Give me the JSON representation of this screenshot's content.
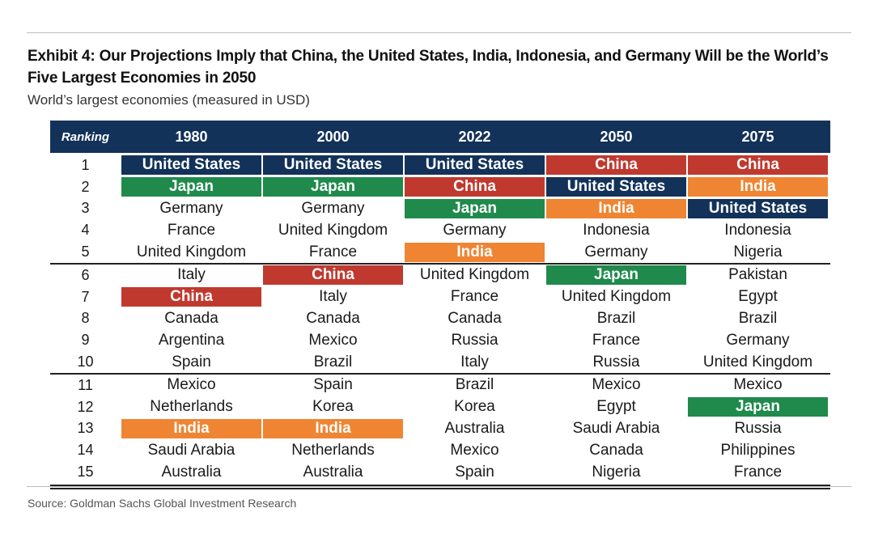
{
  "header": {
    "title": "Exhibit 4: Our Projections Imply that China, the United States, India, Indonesia, and Germany Will be the World’s Five Largest Economies in 2050",
    "subtitle": "World’s largest economies (measured in USD)"
  },
  "footer": {
    "source": "Source: Goldman Sachs Global Investment Research"
  },
  "colors": {
    "header_bg": "#13325a",
    "United States": "#13325a",
    "China": "#c0392f",
    "Japan": "#1f8a4c",
    "India": "#ef8533"
  },
  "chart_data": {
    "type": "table",
    "rank_header": "Ranking",
    "columns": [
      "1980",
      "2000",
      "2022",
      "2050",
      "2075"
    ],
    "highlighted": [
      "United States",
      "China",
      "Japan",
      "India"
    ],
    "rows": [
      {
        "rank": "1",
        "values": [
          "United States",
          "United States",
          "United States",
          "China",
          "China"
        ]
      },
      {
        "rank": "2",
        "values": [
          "Japan",
          "Japan",
          "China",
          "United States",
          "India"
        ]
      },
      {
        "rank": "3",
        "values": [
          "Germany",
          "Germany",
          "Japan",
          "India",
          "United States"
        ]
      },
      {
        "rank": "4",
        "values": [
          "France",
          "United Kingdom",
          "Germany",
          "Indonesia",
          "Indonesia"
        ]
      },
      {
        "rank": "5",
        "values": [
          "United Kingdom",
          "France",
          "India",
          "Germany",
          "Nigeria"
        ]
      },
      {
        "rank": "6",
        "values": [
          "Italy",
          "China",
          "United Kingdom",
          "Japan",
          "Pakistan"
        ]
      },
      {
        "rank": "7",
        "values": [
          "China",
          "Italy",
          "France",
          "United Kingdom",
          "Egypt"
        ]
      },
      {
        "rank": "8",
        "values": [
          "Canada",
          "Canada",
          "Canada",
          "Brazil",
          "Brazil"
        ]
      },
      {
        "rank": "9",
        "values": [
          "Argentina",
          "Mexico",
          "Russia",
          "France",
          "Germany"
        ]
      },
      {
        "rank": "10",
        "values": [
          "Spain",
          "Brazil",
          "Italy",
          "Russia",
          "United Kingdom"
        ]
      },
      {
        "rank": "11",
        "values": [
          "Mexico",
          "Spain",
          "Brazil",
          "Mexico",
          "Mexico"
        ]
      },
      {
        "rank": "12",
        "values": [
          "Netherlands",
          "Korea",
          "Korea",
          "Egypt",
          "Japan"
        ]
      },
      {
        "rank": "13",
        "values": [
          "India",
          "India",
          "Australia",
          "Saudi Arabia",
          "Russia"
        ]
      },
      {
        "rank": "14",
        "values": [
          "Saudi Arabia",
          "Netherlands",
          "Mexico",
          "Canada",
          "Philippines"
        ]
      },
      {
        "rank": "15",
        "values": [
          "Australia",
          "Australia",
          "Spain",
          "Nigeria",
          "France"
        ]
      }
    ]
  }
}
